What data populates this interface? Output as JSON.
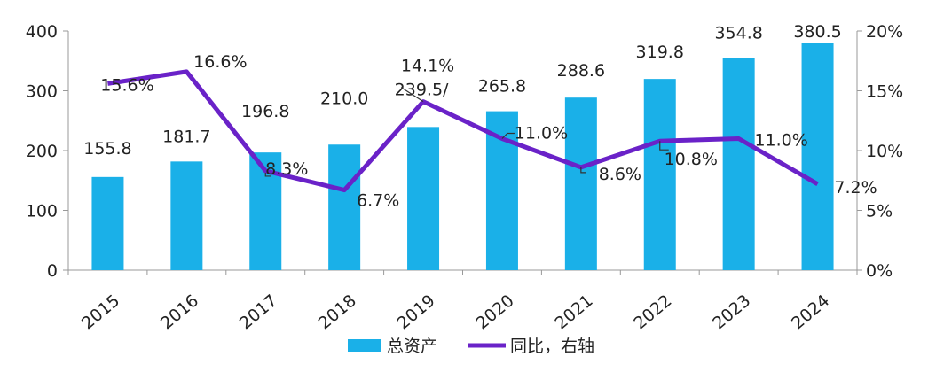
{
  "chart_data": {
    "type": "bar",
    "categories": [
      "2015",
      "2016",
      "2017",
      "2018",
      "2019",
      "2020",
      "2021",
      "2022",
      "2023",
      "2024"
    ],
    "series": [
      {
        "name": "总资产",
        "type": "bar",
        "axis": "left",
        "color": "#1ab0e8",
        "values": [
          155.8,
          181.7,
          196.8,
          210.0,
          239.5,
          265.8,
          288.6,
          319.8,
          354.8,
          380.5
        ],
        "labels": [
          "155.8",
          "181.7",
          "196.8",
          "210.0",
          "239.5/",
          "265.8",
          "288.6",
          "319.8",
          "354.8",
          "380.5"
        ]
      },
      {
        "name": "同比，右轴",
        "type": "line",
        "axis": "right",
        "color": "#6a22c8",
        "values": [
          15.6,
          16.6,
          8.3,
          6.7,
          14.1,
          11.0,
          8.6,
          10.8,
          11.0,
          7.2
        ],
        "labels": [
          "15.6%",
          "16.6%",
          "8.3%",
          "6.7%",
          "14.1%",
          "11.0%",
          "8.6%",
          "10.8%",
          "11.0%",
          "7.2%"
        ]
      }
    ],
    "y_left": {
      "min": 0,
      "max": 400,
      "ticks": [
        "0",
        "100",
        "200",
        "300",
        "400"
      ]
    },
    "y_right": {
      "min": 0,
      "max": 20,
      "ticks": [
        "0%",
        "5%",
        "10%",
        "15%",
        "20%"
      ]
    },
    "grid": false,
    "legend": "bottom-center"
  }
}
